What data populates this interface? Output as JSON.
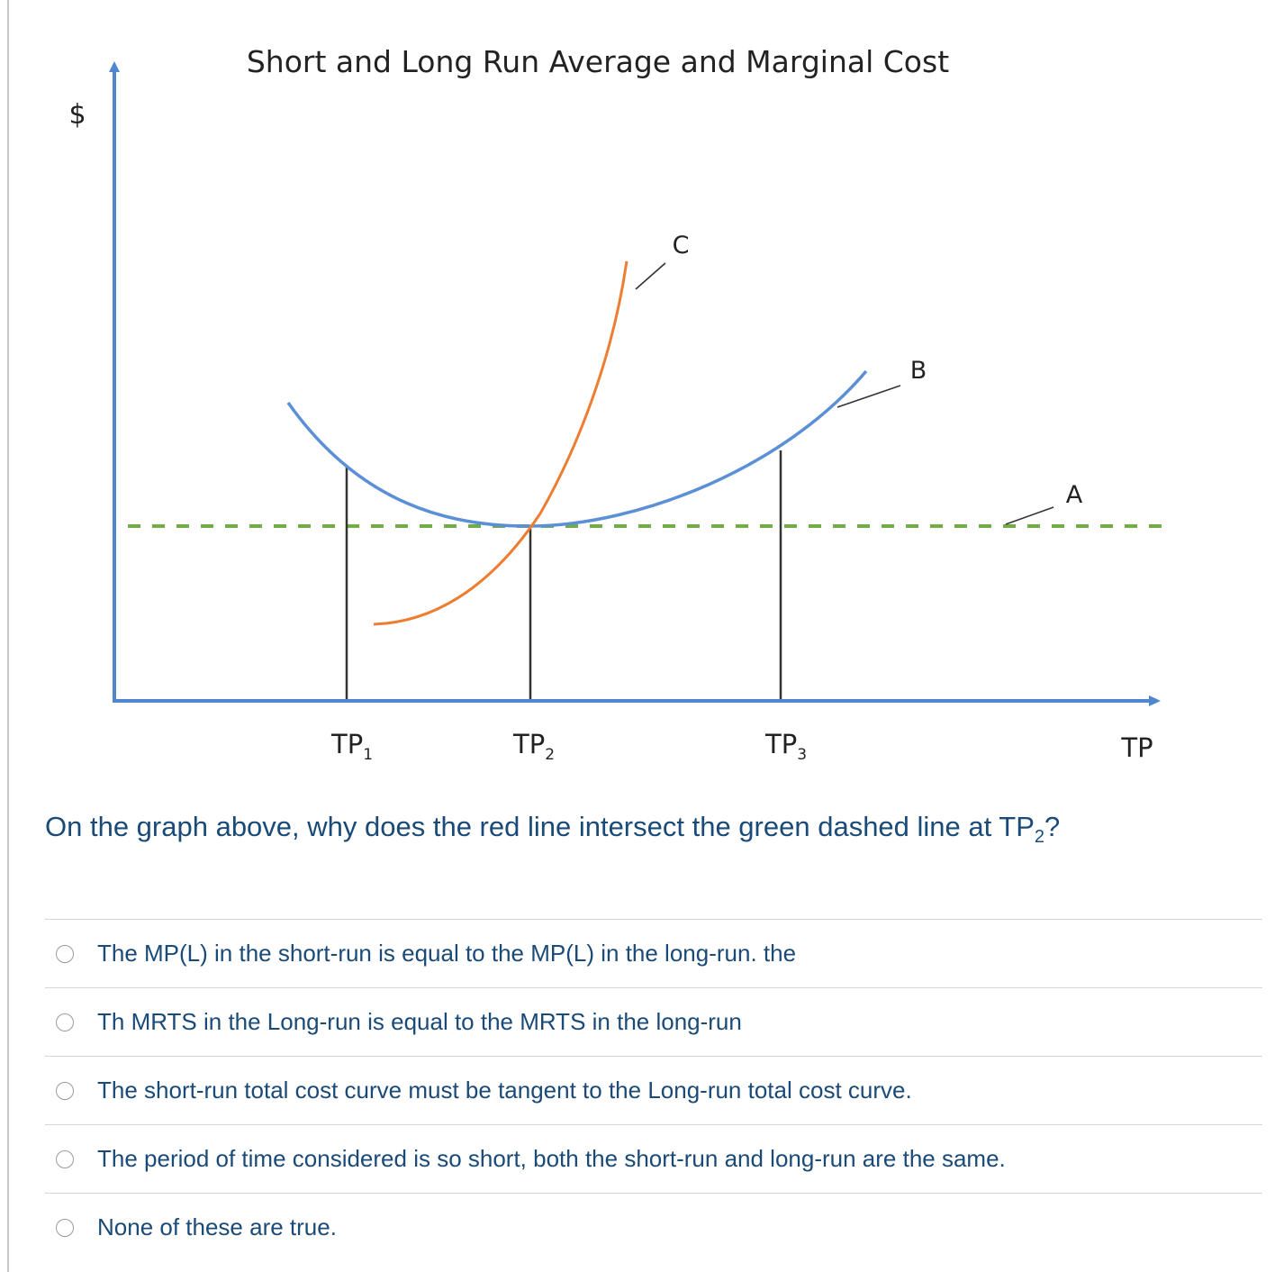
{
  "chart_data": {
    "type": "line",
    "title": "Short and Long Run Average and Marginal Cost",
    "ylabel": "$",
    "xlabel": "TP",
    "x_ticks": [
      "TP1",
      "TP2",
      "TP3"
    ],
    "curve_labels": [
      "C",
      "B",
      "A"
    ],
    "series": [
      {
        "name": "C",
        "color": "#ed7d31"
      },
      {
        "name": "B",
        "color": "#5b8fd6"
      },
      {
        "name": "A",
        "color": "#70ad47"
      }
    ]
  },
  "figure": {
    "title": "Short and Long Run Average and Marginal Cost",
    "y_axis_label": "$",
    "x_axis_label": "TP",
    "tick_tp1_main": "TP",
    "tick_tp1_sub": "1",
    "tick_tp2_main": "TP",
    "tick_tp2_sub": "2",
    "tick_tp3_main": "TP",
    "tick_tp3_sub": "3",
    "label_c": "C",
    "label_b": "B",
    "label_a": "A"
  },
  "question": {
    "text_before": "On the graph above, why does the red line intersect the green dashed line at TP",
    "subscript": "2",
    "text_after": "?"
  },
  "choices": [
    {
      "label": "The MP(L) in the short-run is equal to the MP(L) in the long-run. the"
    },
    {
      "label": "Th MRTS in the Long-run is equal to the MRTS in the long-run"
    },
    {
      "label": "The short-run total cost curve must be tangent to the Long-run total cost curve."
    },
    {
      "label": "The period of time considered is so short, both the short-run and long-run are the same."
    },
    {
      "label": "None of these are true."
    }
  ],
  "colors": {
    "axis": "#4f86d0",
    "blue_curve": "#5b8fd6",
    "orange_curve": "#ed7d31",
    "green_dashed": "#70ad47",
    "question_text": "#1a4a78"
  }
}
